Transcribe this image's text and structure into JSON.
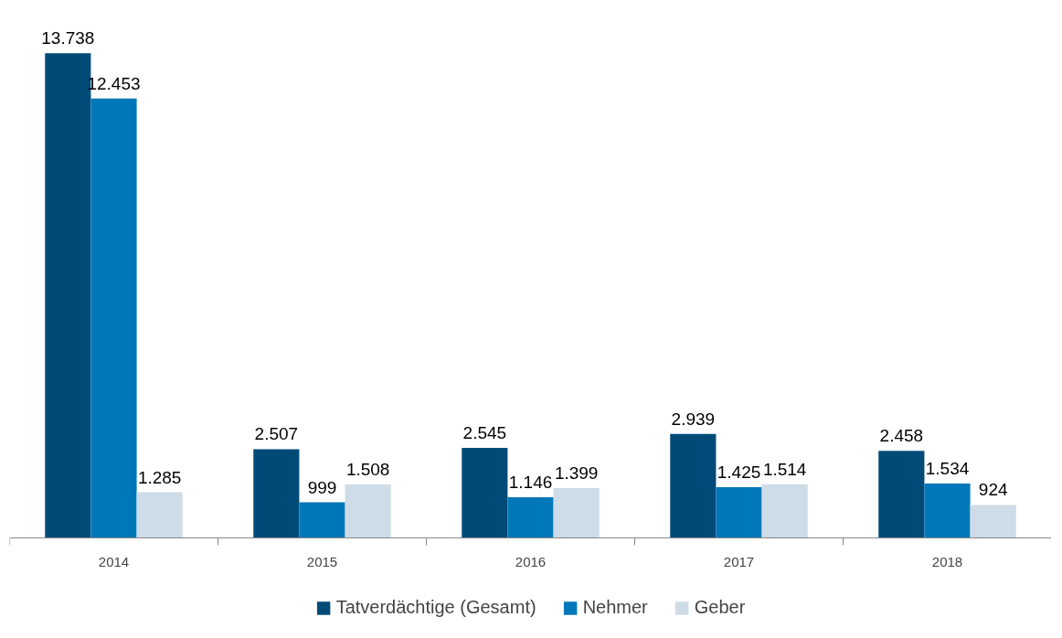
{
  "chart_data": {
    "type": "bar",
    "categories": [
      "2014",
      "2015",
      "2016",
      "2017",
      "2018"
    ],
    "series": [
      {
        "name": "Tatverdächtige (Gesamt)",
        "color": "#004a78",
        "values": [
          13738,
          2507,
          2545,
          2939,
          2458
        ],
        "value_labels": [
          "13.738",
          "2.507",
          "2.545",
          "2.939",
          "2.458"
        ]
      },
      {
        "name": "Nehmer",
        "color": "#0077b8",
        "values": [
          12453,
          999,
          1146,
          1425,
          1534
        ],
        "value_labels": [
          "12.453",
          "999",
          "1.146",
          "1.425",
          "1.534"
        ]
      },
      {
        "name": "Geber",
        "color": "#cddce6",
        "values": [
          1285,
          1508,
          1399,
          1514,
          924
        ],
        "value_labels": [
          "1.285",
          "1.508",
          "1.399",
          "1.514",
          "924"
        ]
      }
    ],
    "legend": "bottom",
    "grid": false,
    "tick_labels": "x"
  }
}
